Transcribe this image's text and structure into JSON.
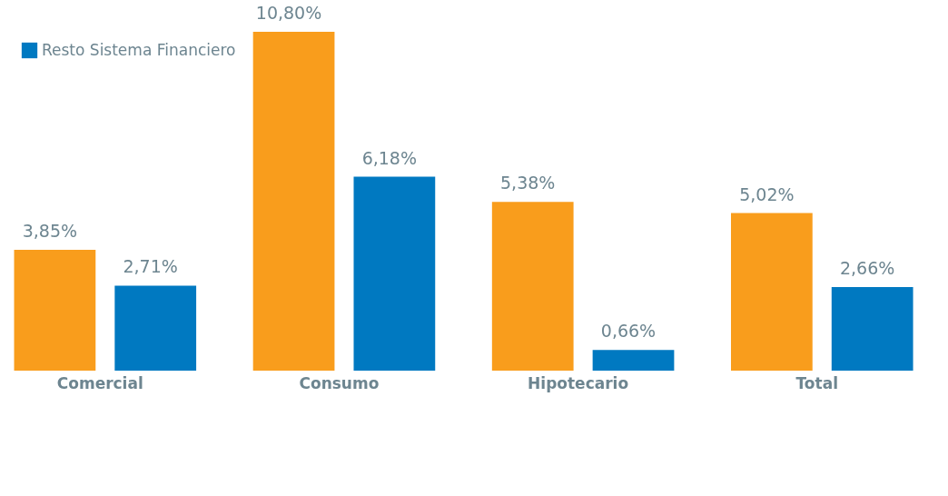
{
  "chart_data": {
    "type": "bar",
    "categories": [
      "Comercial",
      "Consumo",
      "Hipotecario",
      "Total"
    ],
    "series": [
      {
        "color": "#f99d1c",
        "values": [
          3.85,
          10.8,
          5.38,
          5.02
        ],
        "value_labels": [
          "3,85%",
          "10,80%",
          "5,38%",
          "5,02%"
        ]
      },
      {
        "name": "Resto Sistema Financiero",
        "color": "#0079c1",
        "values": [
          2.71,
          6.18,
          0.66,
          2.66
        ],
        "value_labels": [
          "2,71%",
          "6,18%",
          "0,66%",
          "2,66%"
        ]
      }
    ],
    "legend": "top left"
  }
}
